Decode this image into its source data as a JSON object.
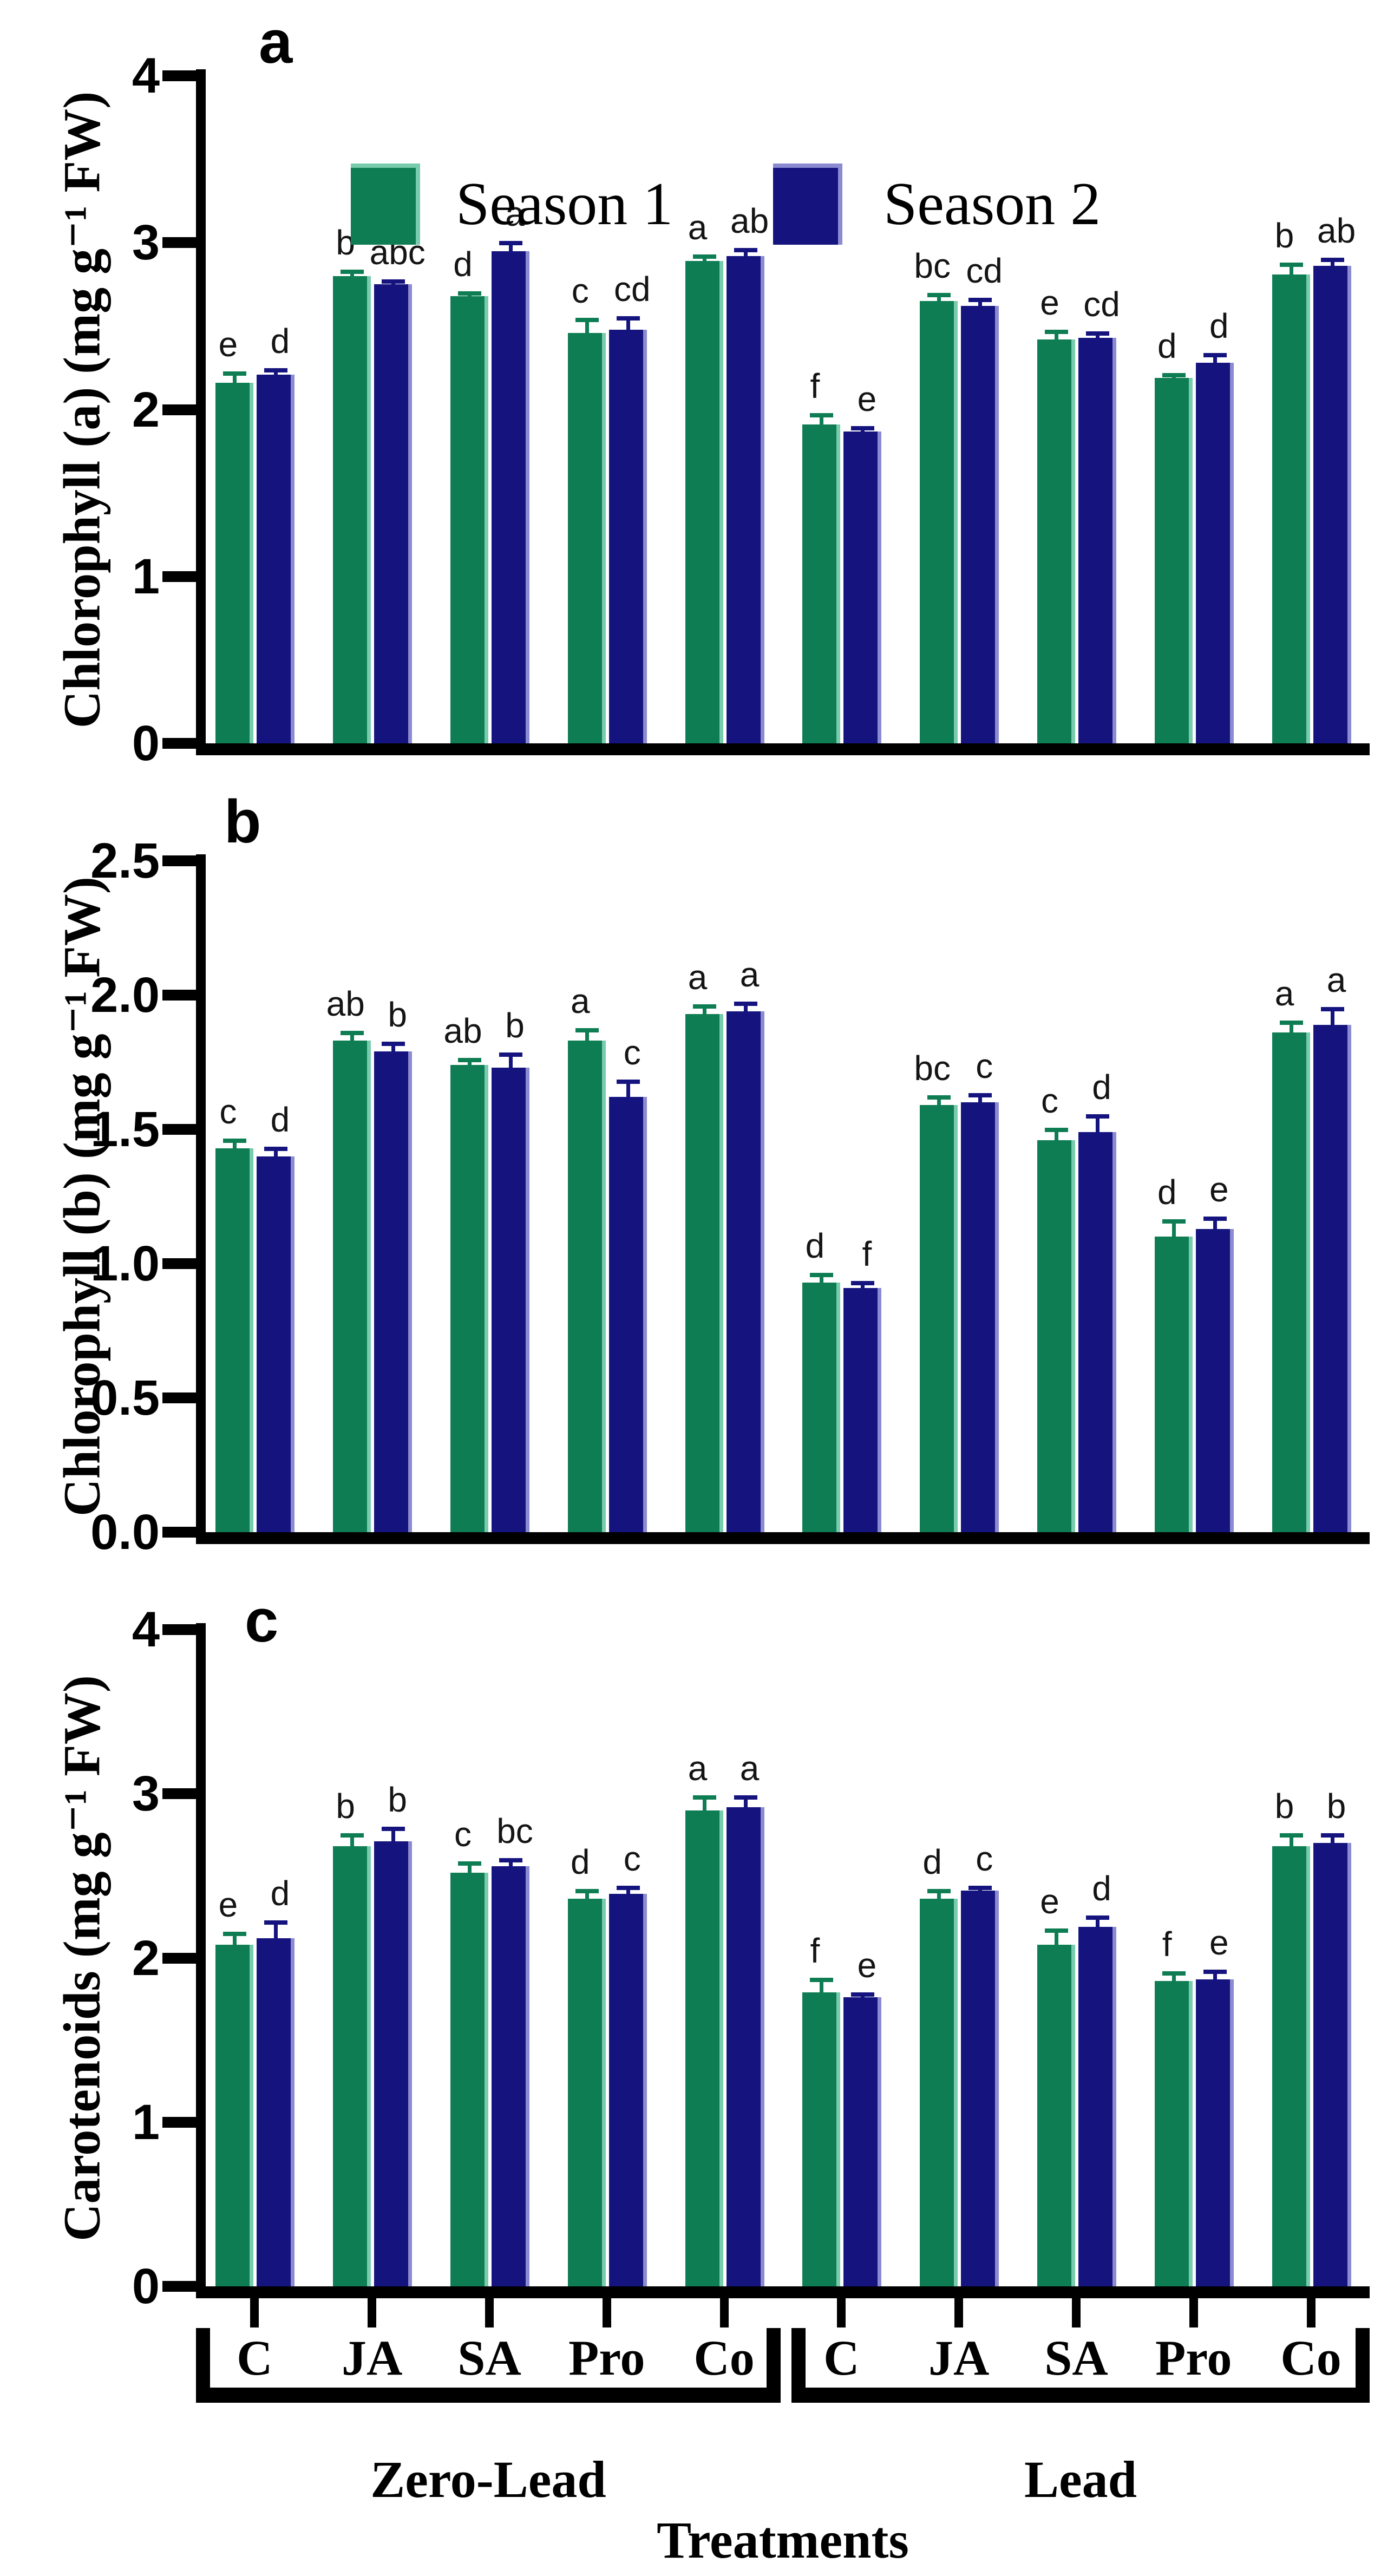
{
  "legend": {
    "items": [
      {
        "label": "Season 1",
        "color": "#0E7D53",
        "edge": "#79CBAD"
      },
      {
        "label": "Season 2",
        "color": "#15147F",
        "edge": "#8B8BD2"
      }
    ]
  },
  "x_axis": {
    "title": "Treatments",
    "group_labels": [
      "Zero-Lead",
      "Lead"
    ],
    "treatments": [
      "C",
      "JA",
      "SA",
      "Pro",
      "Co",
      "C",
      "JA",
      "SA",
      "Pro",
      "Co"
    ]
  },
  "chart_data": [
    {
      "type": "bar",
      "panel": "a",
      "ylabel": "Chlorophyll (a) (mg g⁻¹ FW)",
      "ylim": [
        0,
        4
      ],
      "grid": false,
      "legend_position": "top-inside",
      "yticks": [
        {
          "v": 0,
          "label": "0"
        },
        {
          "v": 1,
          "label": "1"
        },
        {
          "v": 2,
          "label": "2"
        },
        {
          "v": 3,
          "label": "3"
        },
        {
          "v": 4,
          "label": "4"
        }
      ],
      "categories": [
        "C",
        "JA",
        "SA",
        "Pro",
        "Co",
        "C",
        "JA",
        "SA",
        "Pro",
        "Co"
      ],
      "groups": [
        {
          "name": "Zero-Lead",
          "span": [
            0,
            4
          ]
        },
        {
          "name": "Lead",
          "span": [
            5,
            9
          ]
        }
      ],
      "series": [
        {
          "name": "Season 1",
          "values": [
            2.16,
            2.8,
            2.68,
            2.46,
            2.89,
            1.91,
            2.65,
            2.42,
            2.19,
            2.81
          ],
          "errors": [
            0.06,
            0.03,
            0.02,
            0.08,
            0.03,
            0.06,
            0.04,
            0.05,
            0.02,
            0.06
          ],
          "letters": [
            "e",
            "b",
            "d",
            "c",
            "a",
            "f",
            "bc",
            "e",
            "d",
            "b"
          ]
        },
        {
          "name": "Season 2",
          "values": [
            2.21,
            2.75,
            2.95,
            2.48,
            2.92,
            1.87,
            2.62,
            2.43,
            2.28,
            2.86
          ],
          "errors": [
            0.03,
            0.02,
            0.05,
            0.07,
            0.04,
            0.02,
            0.04,
            0.03,
            0.05,
            0.04
          ],
          "letters": [
            "d",
            "abc",
            "a",
            "cd",
            "ab",
            "e",
            "cd",
            "cd",
            "d",
            "ab"
          ]
        }
      ]
    },
    {
      "type": "bar",
      "panel": "b",
      "ylabel": "Chlorophyll (b) (mg g⁻¹ FW)",
      "ylim": [
        0,
        2.5
      ],
      "grid": false,
      "yticks": [
        {
          "v": 0,
          "label": "0.0"
        },
        {
          "v": 0.5,
          "label": "0.5"
        },
        {
          "v": 1.0,
          "label": "1.0"
        },
        {
          "v": 1.5,
          "label": "1.5"
        },
        {
          "v": 2.0,
          "label": "2.0"
        },
        {
          "v": 2.5,
          "label": "2.5"
        }
      ],
      "categories": [
        "C",
        "JA",
        "SA",
        "Pro",
        "Co",
        "C",
        "JA",
        "SA",
        "Pro",
        "Co"
      ],
      "groups": [
        {
          "name": "Zero-Lead",
          "span": [
            0,
            4
          ]
        },
        {
          "name": "Lead",
          "span": [
            5,
            9
          ]
        }
      ],
      "series": [
        {
          "name": "Season 1",
          "values": [
            1.43,
            1.83,
            1.74,
            1.83,
            1.93,
            0.93,
            1.59,
            1.46,
            1.1,
            1.86
          ],
          "errors": [
            0.03,
            0.03,
            0.02,
            0.04,
            0.03,
            0.03,
            0.03,
            0.04,
            0.06,
            0.04
          ],
          "letters": [
            "c",
            "ab",
            "ab",
            "a",
            "a",
            "d",
            "bc",
            "c",
            "d",
            "a"
          ]
        },
        {
          "name": "Season 2",
          "values": [
            1.4,
            1.79,
            1.73,
            1.62,
            1.94,
            0.91,
            1.6,
            1.49,
            1.13,
            1.89
          ],
          "errors": [
            0.03,
            0.03,
            0.05,
            0.06,
            0.03,
            0.02,
            0.03,
            0.06,
            0.04,
            0.06
          ],
          "letters": [
            "d",
            "b",
            "b",
            "c",
            "a",
            "f",
            "c",
            "d",
            "e",
            "a"
          ]
        }
      ]
    },
    {
      "type": "bar",
      "panel": "c",
      "ylabel": "Carotenoids (mg g⁻¹ FW)",
      "ylim": [
        0,
        4
      ],
      "grid": false,
      "yticks": [
        {
          "v": 0,
          "label": "0"
        },
        {
          "v": 1,
          "label": "1"
        },
        {
          "v": 2,
          "label": "2"
        },
        {
          "v": 3,
          "label": "3"
        },
        {
          "v": 4,
          "label": "4"
        }
      ],
      "categories": [
        "C",
        "JA",
        "SA",
        "Pro",
        "Co",
        "C",
        "JA",
        "SA",
        "Pro",
        "Co"
      ],
      "groups": [
        {
          "name": "Zero-Lead",
          "span": [
            0,
            4
          ]
        },
        {
          "name": "Lead",
          "span": [
            5,
            9
          ]
        }
      ],
      "series": [
        {
          "name": "Season 1",
          "values": [
            2.08,
            2.68,
            2.52,
            2.36,
            2.9,
            1.79,
            2.36,
            2.08,
            1.86,
            2.68
          ],
          "errors": [
            0.07,
            0.07,
            0.06,
            0.05,
            0.08,
            0.08,
            0.05,
            0.09,
            0.05,
            0.07
          ],
          "letters": [
            "e",
            "b",
            "c",
            "d",
            "a",
            "f",
            "d",
            "e",
            "f",
            "b"
          ]
        },
        {
          "name": "Season 2",
          "values": [
            2.12,
            2.71,
            2.56,
            2.39,
            2.92,
            1.76,
            2.41,
            2.19,
            1.87,
            2.7
          ],
          "errors": [
            0.1,
            0.08,
            0.04,
            0.04,
            0.06,
            0.02,
            0.02,
            0.06,
            0.05,
            0.05
          ],
          "letters": [
            "d",
            "b",
            "bc",
            "c",
            "a",
            "e",
            "c",
            "d",
            "e",
            "b"
          ]
        }
      ]
    }
  ]
}
